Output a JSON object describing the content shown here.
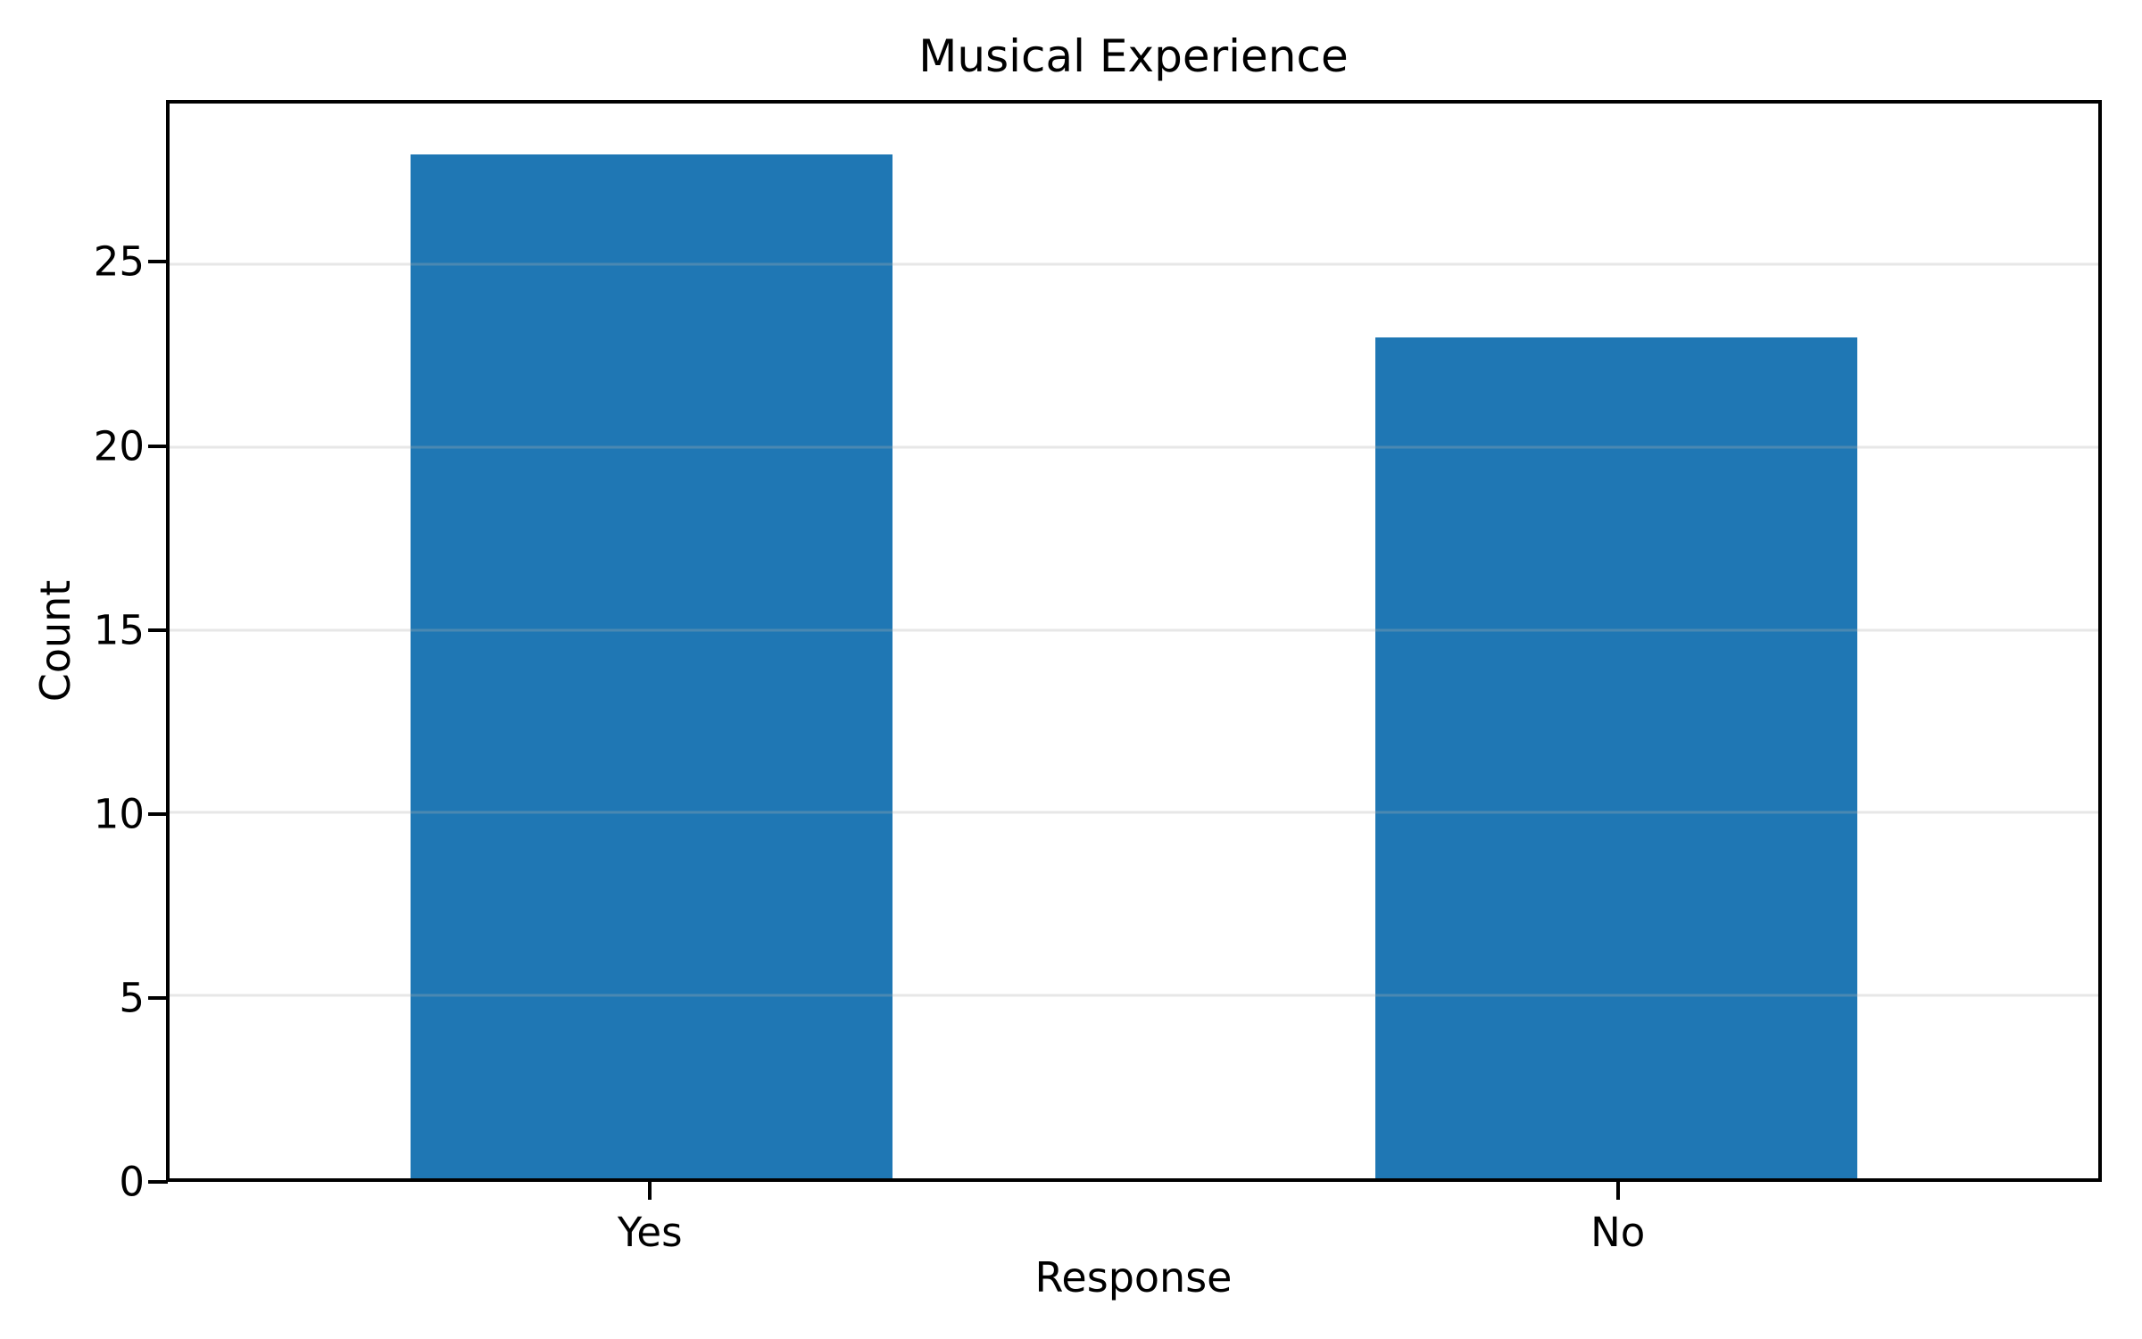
{
  "chart_data": {
    "type": "bar",
    "title": "Musical Experience",
    "categories": [
      "Yes",
      "No"
    ],
    "values": [
      28,
      23
    ],
    "xlabel": "Response",
    "ylabel": "Count",
    "ylim": [
      0,
      29.4
    ],
    "yticks": [
      0,
      5,
      10,
      15,
      20,
      25
    ],
    "bar_width_fraction": 0.25,
    "grid": true,
    "legend_position": "none",
    "colors": {
      "bar": "#1f77b4",
      "gridline": "rgba(176,176,176,0.3)",
      "spine": "#000000",
      "text": "#000000",
      "background": "#ffffff"
    }
  }
}
